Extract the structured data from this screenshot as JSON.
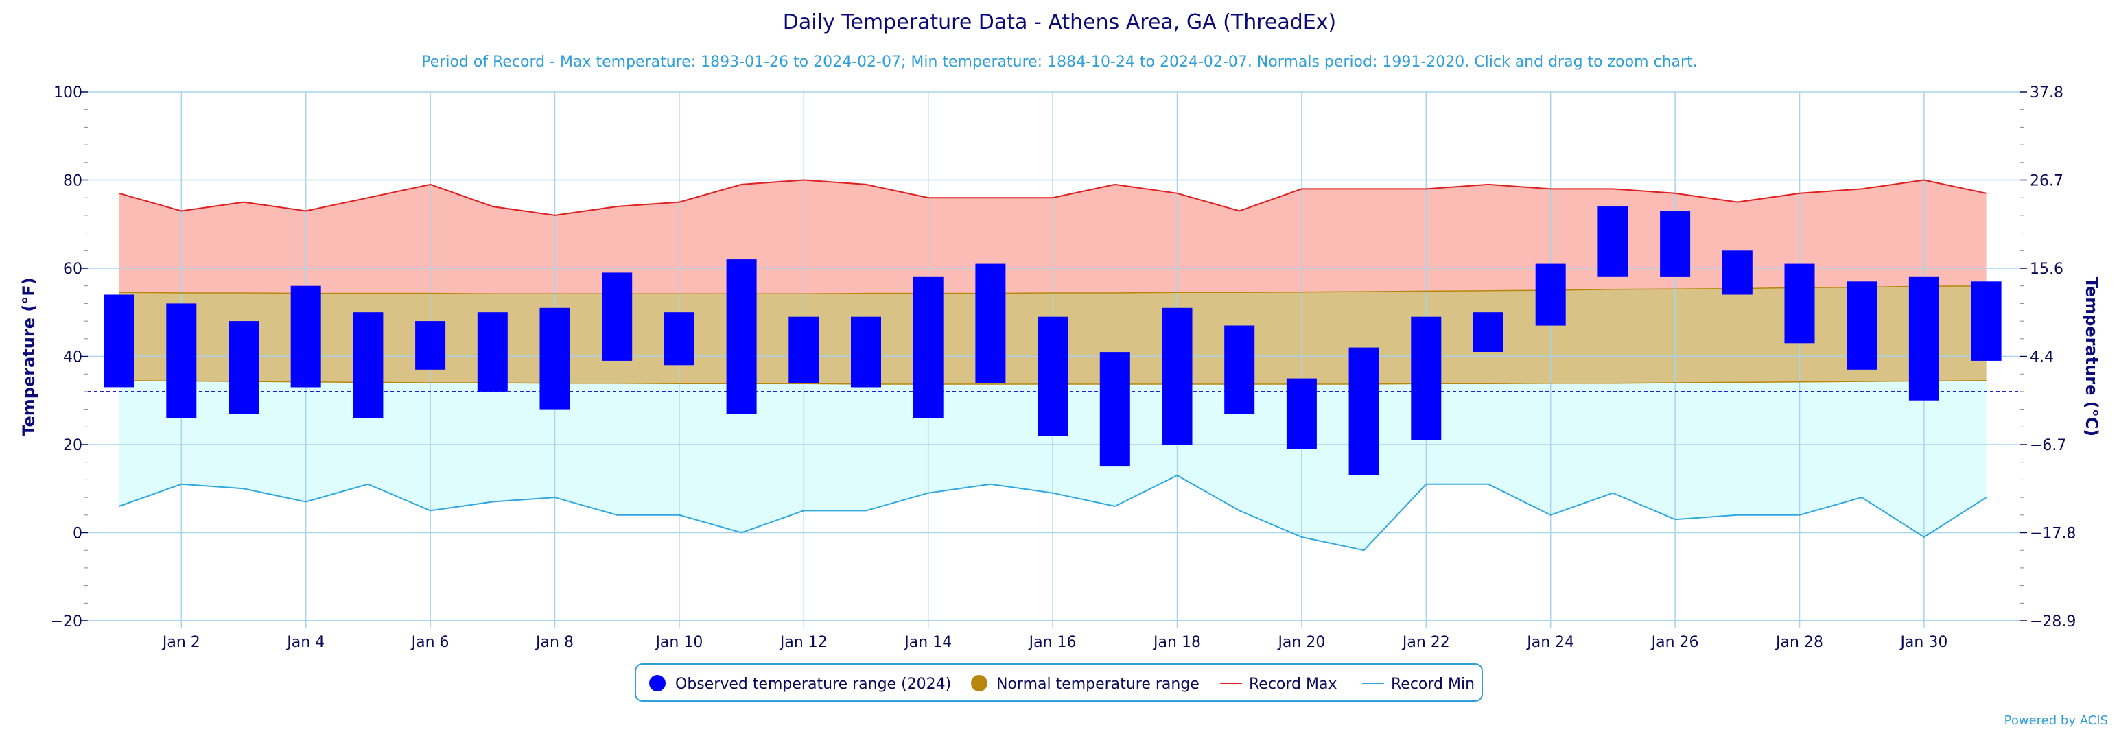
{
  "chart_data": {
    "type": "bar",
    "title": "Daily Temperature Data - Athens Area, GA (ThreadEx)",
    "subtitle": "Period of Record - Max temperature: 1893-01-26 to 2024-02-07; Min temperature: 1884-10-24 to 2024-02-07. Normals period: 1991-2020. Click and drag to zoom chart.",
    "ylabel": "Temperature (°F)",
    "y2label": "Temperature (°C)",
    "ylim": [
      -20,
      100
    ],
    "yticks": [
      "100",
      "80",
      "60",
      "40",
      "20",
      "0",
      "−20"
    ],
    "y2ticks": [
      "37.8",
      "26.7",
      "15.6",
      "4.4",
      "−6.7",
      "−17.8",
      "−28.9"
    ],
    "xticks": [
      "Jan 2",
      "Jan 4",
      "Jan 6",
      "Jan 8",
      "Jan 10",
      "Jan 12",
      "Jan 14",
      "Jan 16",
      "Jan 18",
      "Jan 20",
      "Jan 22",
      "Jan 24",
      "Jan 26",
      "Jan 28",
      "Jan 30"
    ],
    "xticks_days": [
      2,
      4,
      6,
      8,
      10,
      12,
      14,
      16,
      18,
      20,
      22,
      24,
      26,
      28,
      30
    ],
    "freezing_line": 32,
    "grid": true,
    "legend_position": "bottom-center",
    "colors": {
      "observed": "#0000ff",
      "normal": "#b8860b",
      "normal_fill": "#d9c285",
      "record_max": "#e02020",
      "record_max_fill": "#fbbcb5",
      "record_min": "#2fa8e0",
      "record_min_fill": "#e0fdfd",
      "grid": "#a8d4ee",
      "freeze": "#0000cc"
    },
    "days": [
      1,
      2,
      3,
      4,
      5,
      6,
      7,
      8,
      9,
      10,
      11,
      12,
      13,
      14,
      15,
      16,
      17,
      18,
      19,
      20,
      21,
      22,
      23,
      24,
      25,
      26,
      27,
      28,
      29,
      30,
      31
    ],
    "series": [
      {
        "name": "Observed temperature range (2024)",
        "low": [
          33,
          26,
          27,
          33,
          26,
          37,
          32,
          28,
          39,
          38,
          27,
          34,
          33,
          26,
          34,
          22,
          15,
          20,
          27,
          19,
          13,
          21,
          41,
          47,
          58,
          58,
          54,
          43,
          37,
          30,
          39
        ],
        "high": [
          54,
          52,
          48,
          56,
          50,
          48,
          50,
          51,
          59,
          50,
          62,
          49,
          49,
          58,
          61,
          49,
          41,
          51,
          47,
          35,
          42,
          49,
          50,
          61,
          74,
          73,
          64,
          61,
          57,
          58,
          57
        ]
      },
      {
        "name": "Normal temperature range",
        "low": [
          34.5,
          34.4,
          34.3,
          34.2,
          34.1,
          34.0,
          34.0,
          33.9,
          33.9,
          33.8,
          33.8,
          33.8,
          33.7,
          33.7,
          33.7,
          33.7,
          33.7,
          33.7,
          33.7,
          33.7,
          33.7,
          33.8,
          33.8,
          33.9,
          33.9,
          34.0,
          34.1,
          34.2,
          34.3,
          34.4,
          34.5
        ],
        "high": [
          54.5,
          54.4,
          54.4,
          54.3,
          54.3,
          54.3,
          54.2,
          54.2,
          54.2,
          54.2,
          54.2,
          54.2,
          54.3,
          54.3,
          54.3,
          54.4,
          54.4,
          54.5,
          54.5,
          54.6,
          54.7,
          54.8,
          54.9,
          55.0,
          55.2,
          55.3,
          55.4,
          55.6,
          55.7,
          55.9,
          56.0
        ]
      },
      {
        "name": "Record Max",
        "values": [
          77,
          73,
          75,
          73,
          76,
          79,
          74,
          72,
          74,
          75,
          79,
          80,
          79,
          76,
          76,
          76,
          79,
          77,
          73,
          78,
          78,
          78,
          79,
          78,
          78,
          77,
          75,
          77,
          78,
          80,
          77
        ]
      },
      {
        "name": "Record Min",
        "values": [
          6,
          11,
          10,
          7,
          11,
          5,
          7,
          8,
          4,
          4,
          0,
          5,
          5,
          9,
          11,
          9,
          6,
          13,
          5,
          -1,
          -4,
          11,
          11,
          4,
          9,
          3,
          4,
          4,
          8,
          -1,
          8
        ]
      }
    ]
  },
  "credits": "Powered by ACIS"
}
